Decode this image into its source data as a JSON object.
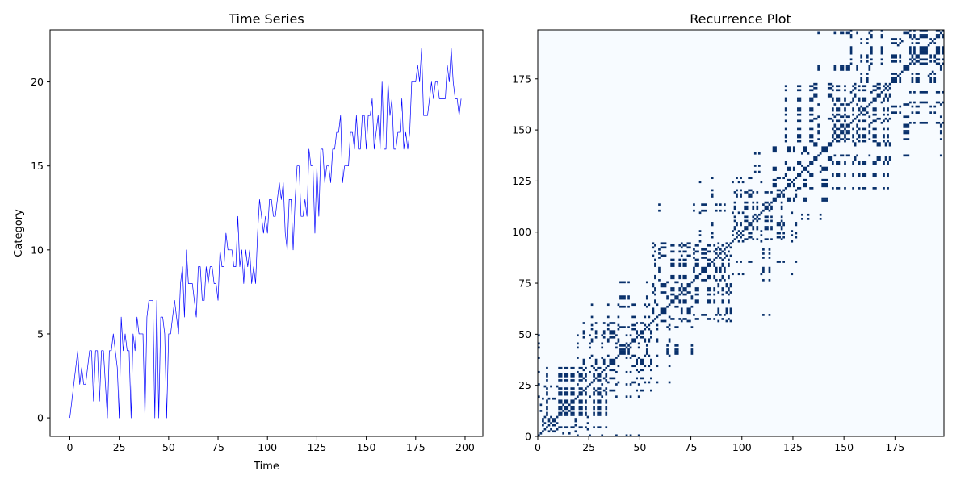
{
  "colors": {
    "line": "#0000ff",
    "recurrence_on": "#08306b",
    "recurrence_off": "#f7fbff",
    "axes": "#000000",
    "background": "#ffffff"
  },
  "chart_data": [
    {
      "type": "line",
      "title": "Time Series",
      "xlabel": "Time",
      "ylabel": "Category",
      "xlim": [
        -10,
        209
      ],
      "ylim": [
        -1.1,
        23.1
      ],
      "xticks": [
        0,
        25,
        50,
        75,
        100,
        125,
        150,
        175,
        200
      ],
      "yticks": [
        0,
        5,
        10,
        15,
        20
      ],
      "grid": false,
      "series": [
        {
          "y": [
            0,
            1,
            2,
            3,
            4,
            2,
            3,
            2,
            2,
            3,
            4,
            4,
            1,
            4,
            4,
            1,
            4,
            4,
            2,
            0,
            4,
            4,
            5,
            4,
            3,
            0,
            6,
            4,
            5,
            4,
            4,
            0,
            5,
            4,
            6,
            5,
            5,
            5,
            0,
            6,
            7,
            7,
            7,
            0,
            7,
            0,
            6,
            6,
            5,
            0,
            5,
            5,
            6,
            7,
            6,
            5,
            8,
            9,
            6,
            10,
            8,
            8,
            8,
            7,
            6,
            9,
            9,
            7,
            7,
            9,
            8,
            9,
            9,
            8,
            8,
            7,
            10,
            9,
            9,
            11,
            10,
            10,
            10,
            9,
            9,
            12,
            9,
            10,
            8,
            10,
            9,
            10,
            8,
            9,
            8,
            11,
            13,
            12,
            11,
            12,
            11,
            13,
            13,
            12,
            12,
            13,
            14,
            13,
            14,
            11,
            10,
            13,
            13,
            10,
            13,
            15,
            15,
            12,
            12,
            13,
            12,
            16,
            15,
            15,
            11,
            15,
            12,
            16,
            16,
            14,
            15,
            15,
            14,
            16,
            16,
            17,
            17,
            18,
            14,
            15,
            15,
            15,
            17,
            17,
            16,
            18,
            16,
            16,
            18,
            18,
            16,
            18,
            18,
            19,
            16,
            17,
            18,
            16,
            20,
            16,
            16,
            20,
            18,
            19,
            16,
            16,
            17,
            17,
            19,
            16,
            17,
            16,
            17,
            20,
            20,
            20,
            21,
            20,
            22,
            18,
            18,
            18,
            19,
            20,
            19,
            20,
            20,
            19,
            19,
            19,
            19,
            21,
            20,
            22,
            20,
            19,
            19,
            18,
            19
          ],
          "x_start": 0
        }
      ]
    },
    {
      "type": "heatmap",
      "title": "Recurrence Plot",
      "xlim": [
        0,
        199
      ],
      "ylim": [
        0,
        199
      ],
      "xticks": [
        0,
        25,
        50,
        75,
        100,
        125,
        150,
        175
      ],
      "yticks": [
        0,
        25,
        50,
        75,
        100,
        125,
        150,
        175
      ],
      "origin": "lower",
      "colormap": "Blues",
      "recurrence_rule": "series values equal"
    }
  ]
}
